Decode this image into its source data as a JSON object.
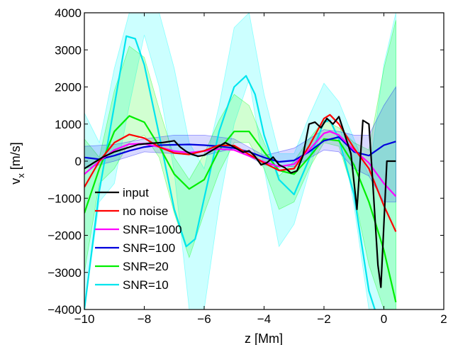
{
  "chart_data": {
    "type": "line",
    "xlabel": "z [Mm]",
    "ylabel": "v",
    "ylabel_sub": "x",
    "ylabel_unit": "[m/s]",
    "xlim": [
      -10,
      2
    ],
    "ylim": [
      -4000,
      4000
    ],
    "xticks": [
      -10,
      -8,
      -6,
      -4,
      -2,
      0,
      2
    ],
    "yticks": [
      -4000,
      -3000,
      -2000,
      -1000,
      0,
      1000,
      2000,
      3000,
      4000
    ],
    "xtick_labels": [
      "−10",
      "−8",
      "−6",
      "−4",
      "−2",
      "0",
      "2"
    ],
    "ytick_labels": [
      "−4000",
      "−3000",
      "−2000",
      "−1000",
      "0",
      "1000",
      "2000",
      "3000",
      "4000"
    ],
    "grid": false,
    "legend_position": "lower-left",
    "bands": [
      {
        "of": "SNR=10",
        "color": "#00ffff",
        "opacity": 0.2,
        "x": [
          -10,
          -9.5,
          -9,
          -8.5,
          -8,
          -7.5,
          -7,
          -6.5,
          -6,
          -5.5,
          -5,
          -4.5,
          -4,
          -3.5,
          -3,
          -2.5,
          -2,
          -1.5,
          -1,
          -0.5,
          0,
          0.4
        ],
        "upper": [
          1300,
          500,
          2500,
          4000,
          4000,
          4000,
          2500,
          500,
          -200,
          1500,
          3600,
          4000,
          1800,
          200,
          200,
          1200,
          2100,
          1600,
          600,
          -400,
          2600,
          4000
        ],
        "lower": [
          -4000,
          -1100,
          -600,
          1500,
          3400,
          2000,
          -300,
          -4000,
          -4000,
          -1200,
          1000,
          2200,
          -200,
          -2300,
          -1700,
          -300,
          1100,
          1100,
          -1200,
          -4000,
          -4000,
          -4000
        ]
      },
      {
        "of": "SNR=20",
        "color": "#00ff00",
        "opacity": 0.18,
        "x": [
          -10,
          -9.5,
          -9,
          -8.5,
          -8,
          -7.5,
          -7,
          -6.5,
          -6,
          -5.5,
          -5,
          -4.5,
          -4,
          -3.5,
          -3,
          -2.5,
          -2,
          -1.5,
          -1,
          -0.5,
          0,
          0.4
        ],
        "upper": [
          600,
          100,
          1900,
          3100,
          2800,
          1400,
          100,
          -500,
          200,
          1100,
          1800,
          1500,
          500,
          -400,
          0,
          600,
          1100,
          900,
          500,
          300,
          2500,
          3800
        ],
        "lower": [
          -3000,
          -600,
          -200,
          500,
          700,
          100,
          -1400,
          -2600,
          -1400,
          -300,
          500,
          500,
          -200,
          -1300,
          -1100,
          -200,
          500,
          400,
          -900,
          -2800,
          -4000,
          -4000
        ]
      },
      {
        "of": "SNR=100",
        "color": "#0000ff",
        "opacity": 0.15,
        "x": [
          -10,
          -9,
          -8,
          -7,
          -6,
          -5,
          -4,
          -3,
          -2,
          -1.5,
          -1,
          -0.5,
          0,
          0.4
        ],
        "upper": [
          400,
          450,
          600,
          700,
          700,
          600,
          150,
          350,
          850,
          800,
          700,
          700,
          1500,
          2000
        ],
        "lower": [
          -200,
          0,
          250,
          200,
          150,
          350,
          -100,
          -150,
          300,
          250,
          -200,
          -400,
          -1100,
          -1100
        ]
      }
    ],
    "series": [
      {
        "name": "input",
        "color": "#000000",
        "x": [
          -10,
          -9.7,
          -9.4,
          -9.0,
          -8.6,
          -8.2,
          -7.8,
          -7.4,
          -7.0,
          -6.8,
          -6.6,
          -6.4,
          -6.2,
          -6.0,
          -5.8,
          -5.5,
          -5.3,
          -5.1,
          -4.9,
          -4.7,
          -4.5,
          -4.3,
          -4.1,
          -3.9,
          -3.7,
          -3.5,
          -3.3,
          -3.1,
          -2.9,
          -2.7,
          -2.5,
          -2.3,
          -2.1,
          -1.9,
          -1.7,
          -1.5,
          -1.3,
          -1.1,
          -0.9,
          -0.7,
          -0.5,
          -0.4,
          -0.2,
          -0.1,
          0.1,
          0.4
        ],
        "y": [
          -200,
          -50,
          100,
          250,
          350,
          450,
          480,
          500,
          550,
          380,
          260,
          180,
          130,
          160,
          260,
          400,
          500,
          420,
          330,
          240,
          280,
          130,
          -100,
          -40,
          110,
          -100,
          -180,
          -320,
          -260,
          150,
          1000,
          1050,
          900,
          1150,
          1000,
          1200,
          700,
          200,
          -1300,
          1100,
          1000,
          -200,
          -2800,
          -3400,
          0,
          0
        ]
      },
      {
        "name": "no noise",
        "color": "#ff0000",
        "x": [
          -10,
          -9.5,
          -9,
          -8.5,
          -8,
          -7.5,
          -7,
          -6.5,
          -6,
          -5.5,
          -5,
          -4.5,
          -4,
          -3.5,
          -3,
          -2.5,
          -2,
          -1.8,
          -1.5,
          -1,
          -0.5,
          0,
          0.4
        ],
        "y": [
          -700,
          0,
          500,
          720,
          620,
          380,
          220,
          180,
          280,
          430,
          420,
          180,
          -50,
          -250,
          -200,
          400,
          1150,
          1250,
          1000,
          350,
          -200,
          -1200,
          -1900
        ]
      },
      {
        "name": "SNR=1000",
        "color": "#ff00ff",
        "x": [
          -10,
          -9.5,
          -9,
          -8.5,
          -8,
          -7.5,
          -7,
          -6.5,
          -6,
          -5.5,
          -5,
          -4.5,
          -4,
          -3.5,
          -3,
          -2.5,
          -2,
          -1.8,
          -1.5,
          -1,
          -0.5,
          0,
          0.4
        ],
        "y": [
          -350,
          0,
          300,
          460,
          470,
          380,
          270,
          230,
          270,
          330,
          300,
          140,
          -20,
          -150,
          -80,
          300,
          750,
          800,
          700,
          300,
          -50,
          -600,
          -950
        ]
      },
      {
        "name": "SNR=100",
        "color": "#0000dd",
        "x": [
          -10,
          -9.5,
          -9,
          -8.5,
          -8,
          -7.5,
          -7,
          -6.5,
          -6,
          -5.5,
          -5,
          -4.5,
          -4,
          -3.5,
          -3,
          -2.5,
          -2,
          -1.5,
          -1,
          -0.5,
          0,
          0.4
        ],
        "y": [
          100,
          50,
          150,
          280,
          380,
          430,
          440,
          450,
          430,
          400,
          350,
          250,
          100,
          -20,
          20,
          250,
          550,
          650,
          250,
          150,
          430,
          530
        ]
      },
      {
        "name": "SNR=20",
        "color": "#00ee00",
        "x": [
          -10,
          -9.5,
          -9,
          -8.5,
          -8,
          -7.5,
          -7,
          -6.5,
          -6,
          -5.5,
          -5,
          -4.5,
          -4,
          -3.5,
          -3,
          -2.5,
          -2,
          -1.5,
          -1,
          -0.5,
          0,
          0.4
        ],
        "y": [
          -1400,
          -200,
          800,
          1220,
          1050,
          400,
          -350,
          -750,
          -500,
          300,
          800,
          800,
          250,
          -250,
          -350,
          100,
          600,
          550,
          -100,
          -1100,
          -2400,
          -3800
        ]
      },
      {
        "name": "SNR=10",
        "color": "#00e5ee",
        "x": [
          -10,
          -9.5,
          -9,
          -8.6,
          -8.3,
          -8,
          -7.5,
          -7,
          -6.6,
          -6.3,
          -6,
          -5.5,
          -5,
          -4.6,
          -4.3,
          -4,
          -3.5,
          -3,
          -2.5,
          -2,
          -1.8,
          -1.5,
          -1,
          -0.5,
          -0.3
        ],
        "y": [
          -4000,
          -800,
          1500,
          3370,
          3300,
          2600,
          700,
          -1300,
          -2300,
          -2100,
          -1000,
          800,
          2000,
          2300,
          1800,
          700,
          -500,
          -900,
          50,
          1050,
          1100,
          600,
          -900,
          -3500,
          -4000
        ]
      }
    ]
  }
}
